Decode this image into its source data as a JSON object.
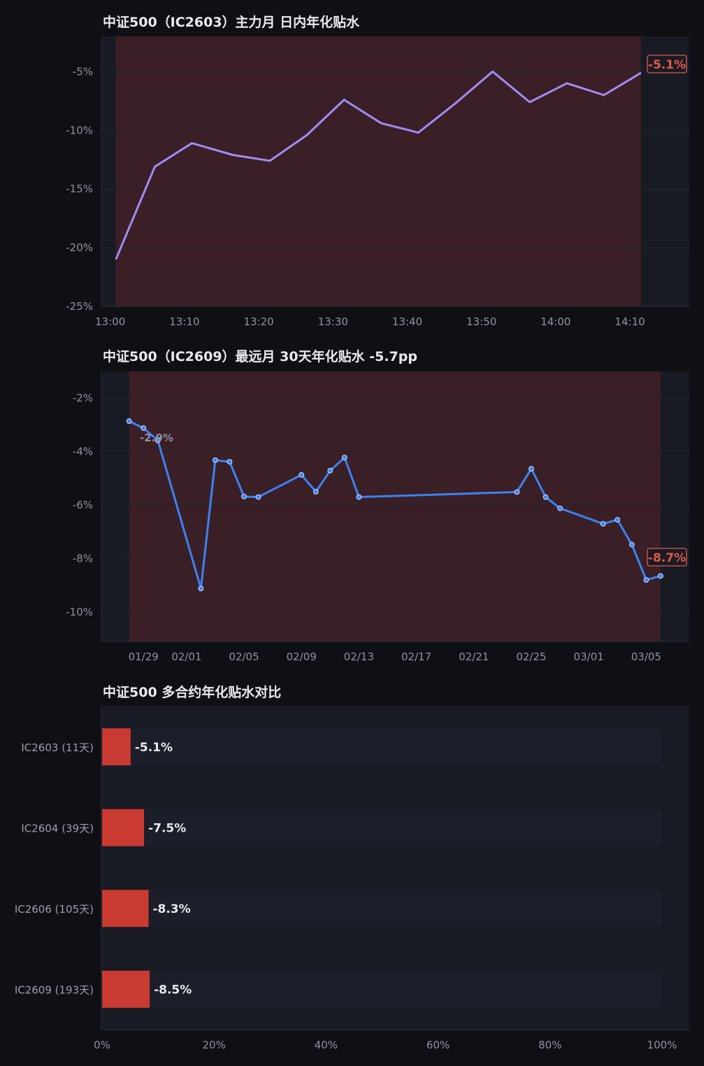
{
  "chart_data": [
    {
      "type": "line",
      "title": "中证500（IC2603）主力月 日内年化贴水",
      "x_ticks": [
        "13:00",
        "13:10",
        "13:20",
        "13:30",
        "13:40",
        "13:50",
        "14:00",
        "14:10"
      ],
      "x": [
        "13:00:45",
        "13:06:00",
        "13:11:00",
        "13:16:30",
        "13:21:30",
        "13:26:30",
        "13:31:30",
        "13:36:30",
        "13:41:30",
        "13:46:30",
        "13:51:30",
        "13:56:30",
        "14:01:30",
        "14:06:30",
        "14:11:30"
      ],
      "y": [
        -21.0,
        -13.1,
        -11.1,
        -12.1,
        -12.6,
        -10.4,
        -7.4,
        -9.4,
        -10.2,
        -7.7,
        -5.0,
        -7.6,
        -6.0,
        -7.0,
        -5.1
      ],
      "ylim": [
        -25,
        -2
      ],
      "y_ticks": [
        -5,
        -10,
        -15,
        -20,
        -25
      ],
      "y_tick_labels": [
        "-5%",
        "-10%",
        "-15%",
        "-20%",
        "-25%"
      ],
      "last_label": "-5.1%",
      "line_color": "#a48af5",
      "shade_color": "#3a1f26"
    },
    {
      "type": "line",
      "title": "中证500（IC2609）最远月 30天年化贴水   -5.7pp",
      "x_ticks": [
        "01/29",
        "02/01",
        "02/05",
        "02/09",
        "02/13",
        "02/17",
        "02/21",
        "02/25",
        "03/01",
        "03/05"
      ],
      "x": [
        "01/28",
        "01/29",
        "01/30",
        "02/02",
        "02/03",
        "02/04",
        "02/05",
        "02/06",
        "02/09",
        "02/10",
        "02/11",
        "02/12",
        "02/13",
        "02/24",
        "02/25",
        "02/26",
        "02/27",
        "03/02",
        "03/03",
        "03/04",
        "03/05",
        "03/06"
      ],
      "y": [
        -2.86,
        -3.12,
        -3.58,
        -9.12,
        -4.32,
        -4.38,
        -5.68,
        -5.7,
        -4.87,
        -5.5,
        -4.71,
        -4.22,
        -5.7,
        -5.51,
        -4.64,
        -5.7,
        -6.12,
        -6.7,
        -6.55,
        -7.48,
        -8.8,
        -8.65
      ],
      "ylim": [
        -11.1,
        -1.0
      ],
      "y_ticks": [
        -2,
        -4,
        -6,
        -8,
        -10
      ],
      "y_tick_labels": [
        "-2%",
        "-4%",
        "-6%",
        "-8%",
        "-10%"
      ],
      "first_label": "-2.9%",
      "last_label": "-8.7%",
      "line_color": "#3b82f6",
      "shade_color": "#3a1f26"
    },
    {
      "type": "bar",
      "orientation": "horizontal",
      "title": "中证500 多合约年化贴水对比",
      "categories": [
        "IC2603 (11天)",
        "IC2604 (39天)",
        "IC2606 (105天)",
        "IC2609 (193天)"
      ],
      "values": [
        5.1,
        7.5,
        8.3,
        8.5
      ],
      "value_labels": [
        "-5.1%",
        "-7.5%",
        "-8.3%",
        "-8.5%"
      ],
      "xlim": [
        0,
        100
      ],
      "x_ticks": [
        0,
        20,
        40,
        60,
        80,
        100
      ],
      "x_tick_labels": [
        "0%",
        "20%",
        "40%",
        "60%",
        "80%",
        "100%"
      ],
      "bar_color": "#c93a32"
    }
  ]
}
